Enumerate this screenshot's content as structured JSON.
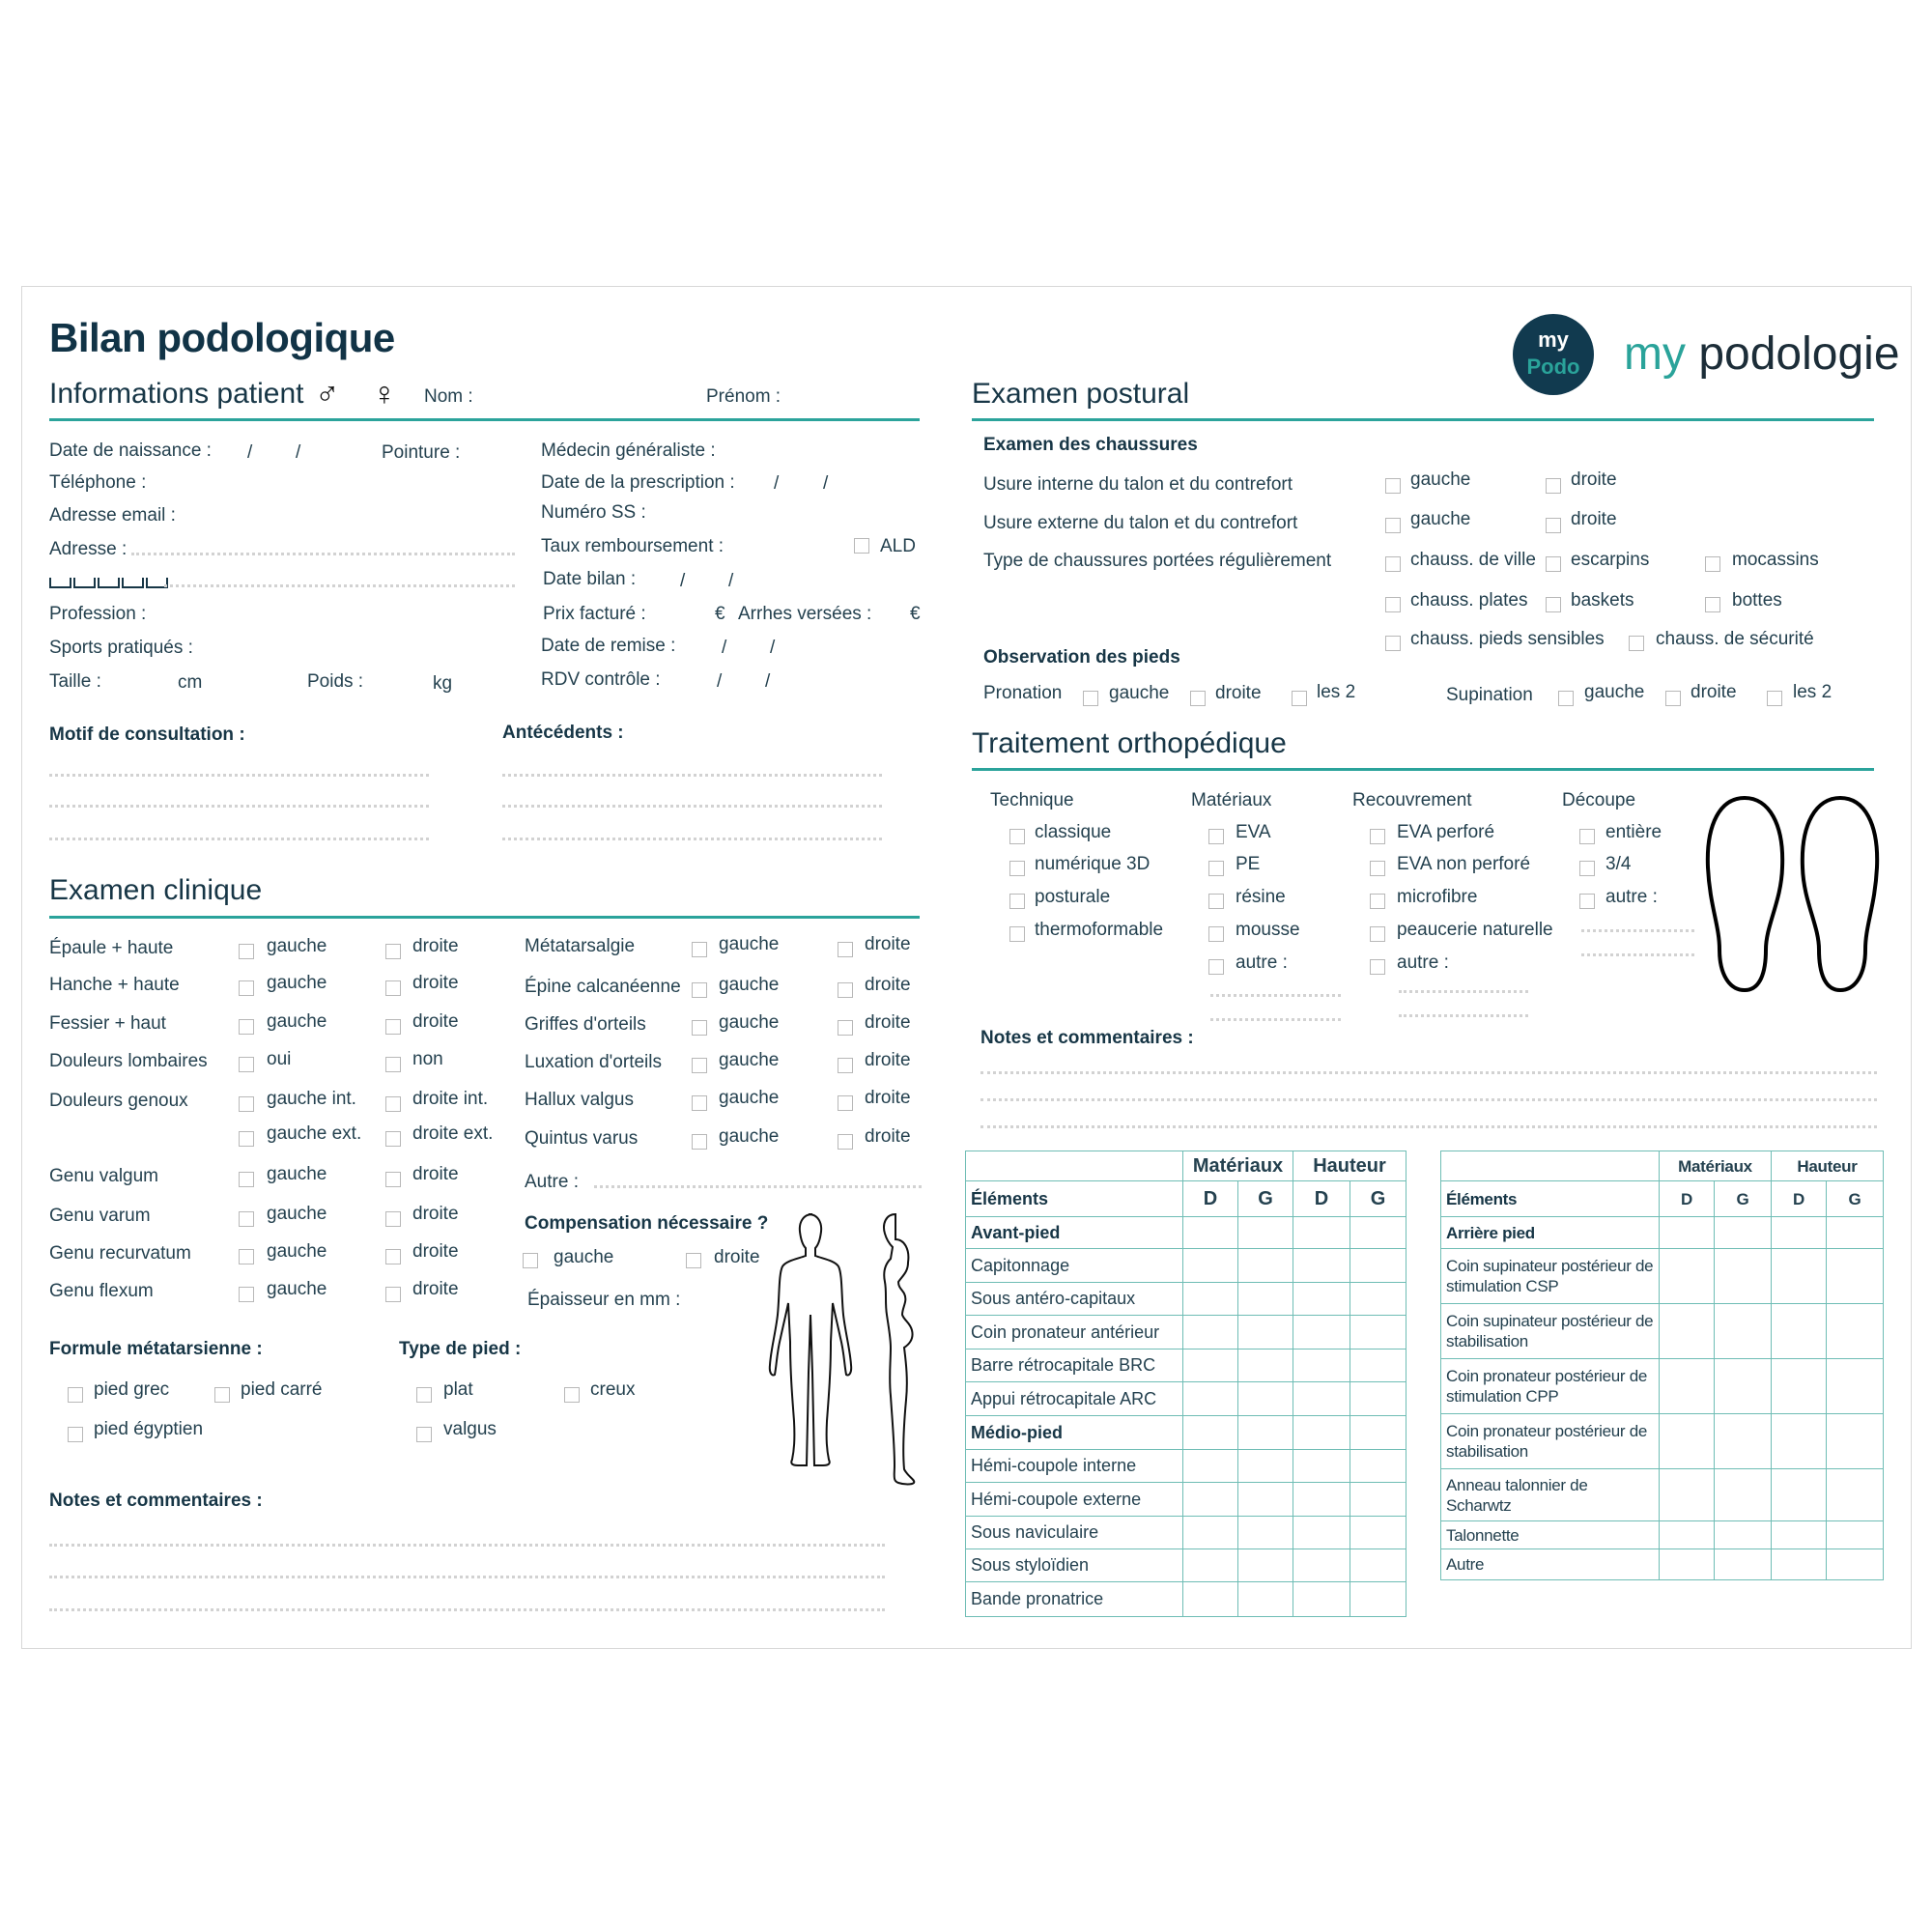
{
  "title": "Bilan podologique",
  "brand": {
    "logo_top": "my",
    "logo_bottom": "Podo",
    "name_my": "my",
    "name_rest": " podologie"
  },
  "colors": {
    "accent": "#2ba39b",
    "text": "#173646",
    "table_border": "#6fbdb5",
    "dotted": "#d2d2d2"
  },
  "patient": {
    "heading": "Informations patient",
    "male": "♂",
    "female": "♀",
    "nom": "Nom :",
    "prenom": "Prénom :",
    "date_naissance": "Date de naissance :",
    "pointure": "Pointure :",
    "telephone": "Téléphone :",
    "email": "Adresse email :",
    "adresse": "Adresse :",
    "profession": "Profession :",
    "sports": "Sports pratiqués :",
    "taille": "Taille :",
    "taille_unit": "cm",
    "poids": "Poids :",
    "poids_unit": "kg",
    "medecin": "Médecin généraliste :",
    "date_prescription": "Date de la prescription :",
    "numero_ss": "Numéro SS :",
    "taux": "Taux remboursement :",
    "ald": "ALD",
    "date_bilan": "Date bilan :",
    "prix": "Prix facturé :",
    "currency": "€",
    "arrhes": "Arrhes versées :",
    "date_remise": "Date de remise :",
    "rdv": "RDV contrôle :",
    "date_sep": "/"
  },
  "motif": "Motif de consultation :",
  "antecedents": "Antécédents :",
  "clinique": {
    "heading": "Examen clinique",
    "rows_left": [
      {
        "label": "Épaule + haute",
        "a": "gauche",
        "b": "droite"
      },
      {
        "label": "Hanche + haute",
        "a": "gauche",
        "b": "droite"
      },
      {
        "label": "Fessier + haut",
        "a": "gauche",
        "b": "droite"
      },
      {
        "label": "Douleurs lombaires",
        "a": "oui",
        "b": "non"
      },
      {
        "label": "Douleurs genoux",
        "a": "gauche int.",
        "b": "droite int."
      },
      {
        "label": "",
        "a": "gauche ext.",
        "b": "droite ext."
      },
      {
        "label": "Genu valgum",
        "a": "gauche",
        "b": "droite"
      },
      {
        "label": "Genu varum",
        "a": "gauche",
        "b": "droite"
      },
      {
        "label": "Genu recurvatum",
        "a": "gauche",
        "b": "droite"
      },
      {
        "label": "Genu flexum",
        "a": "gauche",
        "b": "droite"
      }
    ],
    "rows_right": [
      {
        "label": "Métatarsalgie",
        "a": "gauche",
        "b": "droite"
      },
      {
        "label": "Épine calcanéenne",
        "a": "gauche",
        "b": "droite"
      },
      {
        "label": "Griffes d'orteils",
        "a": "gauche",
        "b": "droite"
      },
      {
        "label": "Luxation d'orteils",
        "a": "gauche",
        "b": "droite"
      },
      {
        "label": "Hallux valgus",
        "a": "gauche",
        "b": "droite"
      },
      {
        "label": "Quintus varus",
        "a": "gauche",
        "b": "droite"
      }
    ],
    "autre": "Autre :",
    "compensation": "Compensation nécessaire ?",
    "comp_a": "gauche",
    "comp_b": "droite",
    "epaisseur": "Épaisseur en mm :",
    "formule": "Formule métatarsienne :",
    "formule_options": [
      "pied grec",
      "pied carré",
      "pied égyptien"
    ],
    "type_pied": "Type de pied :",
    "type_options": [
      "plat",
      "creux",
      "valgus"
    ],
    "notes": "Notes et commentaires :"
  },
  "postural": {
    "heading": "Examen postural",
    "chaussures": "Examen des chaussures",
    "usure_interne": "Usure interne du talon et du contrefort",
    "usure_externe": "Usure externe du talon et du contrefort",
    "side_a": "gauche",
    "side_b": "droite",
    "type_chaussures": "Type de chaussures portées régulièrement",
    "shoe_options": [
      "chauss. de ville",
      "escarpins",
      "mocassins",
      "chauss. plates",
      "baskets",
      "bottes",
      "chauss. pieds sensibles",
      "chauss. de sécurité"
    ],
    "observation": "Observation des pieds",
    "pronation": "Pronation",
    "supination": "Supination",
    "both": "les 2"
  },
  "traitement": {
    "heading": "Traitement orthopédique",
    "columns": [
      {
        "title": "Technique",
        "options": [
          "classique",
          "numérique 3D",
          "posturale",
          "thermoformable"
        ]
      },
      {
        "title": "Matériaux",
        "options": [
          "EVA",
          "PE",
          "résine",
          "mousse",
          "autre :"
        ]
      },
      {
        "title": "Recouvrement",
        "options": [
          "EVA perforé",
          "EVA non perforé",
          "microfibre",
          "peaucerie naturelle",
          "autre :"
        ]
      },
      {
        "title": "Découpe",
        "options": [
          "entière",
          "3/4",
          "autre :"
        ]
      }
    ],
    "notes": "Notes et commentaires :"
  },
  "tables": [
    {
      "materiaux": "Matériaux",
      "hauteur": "Hauteur",
      "elements": "Éléments",
      "d": "D",
      "g": "G",
      "rows": [
        {
          "label": "Avant-pied",
          "section": true
        },
        {
          "label": "Capitonnage"
        },
        {
          "label": "Sous antéro-capitaux"
        },
        {
          "label": "Coin pronateur antérieur"
        },
        {
          "label": "Barre rétrocapitale BRC"
        },
        {
          "label": "Appui rétrocapitale ARC"
        },
        {
          "label": "Médio-pied",
          "section": true
        },
        {
          "label": "Hémi-coupole interne"
        },
        {
          "label": "Hémi-coupole externe"
        },
        {
          "label": "Sous naviculaire"
        },
        {
          "label": "Sous styloïdien"
        },
        {
          "label": "Bande pronatrice"
        }
      ]
    },
    {
      "materiaux": "Matériaux",
      "hauteur": "Hauteur",
      "elements": "Éléments",
      "d": "D",
      "g": "G",
      "rows": [
        {
          "label": "Arrière pied",
          "section": true
        },
        {
          "label": "Coin supinateur postérieur de stimulation CSP"
        },
        {
          "label": "Coin supinateur postérieur de stabilisation"
        },
        {
          "label": "Coin pronateur postérieur de stimulation CPP"
        },
        {
          "label": "Coin pronateur postérieur de stabilisation"
        },
        {
          "label": "Anneau talonnier de Scharwtz"
        },
        {
          "label": "Talonnette"
        },
        {
          "label": "Autre"
        }
      ]
    }
  ]
}
